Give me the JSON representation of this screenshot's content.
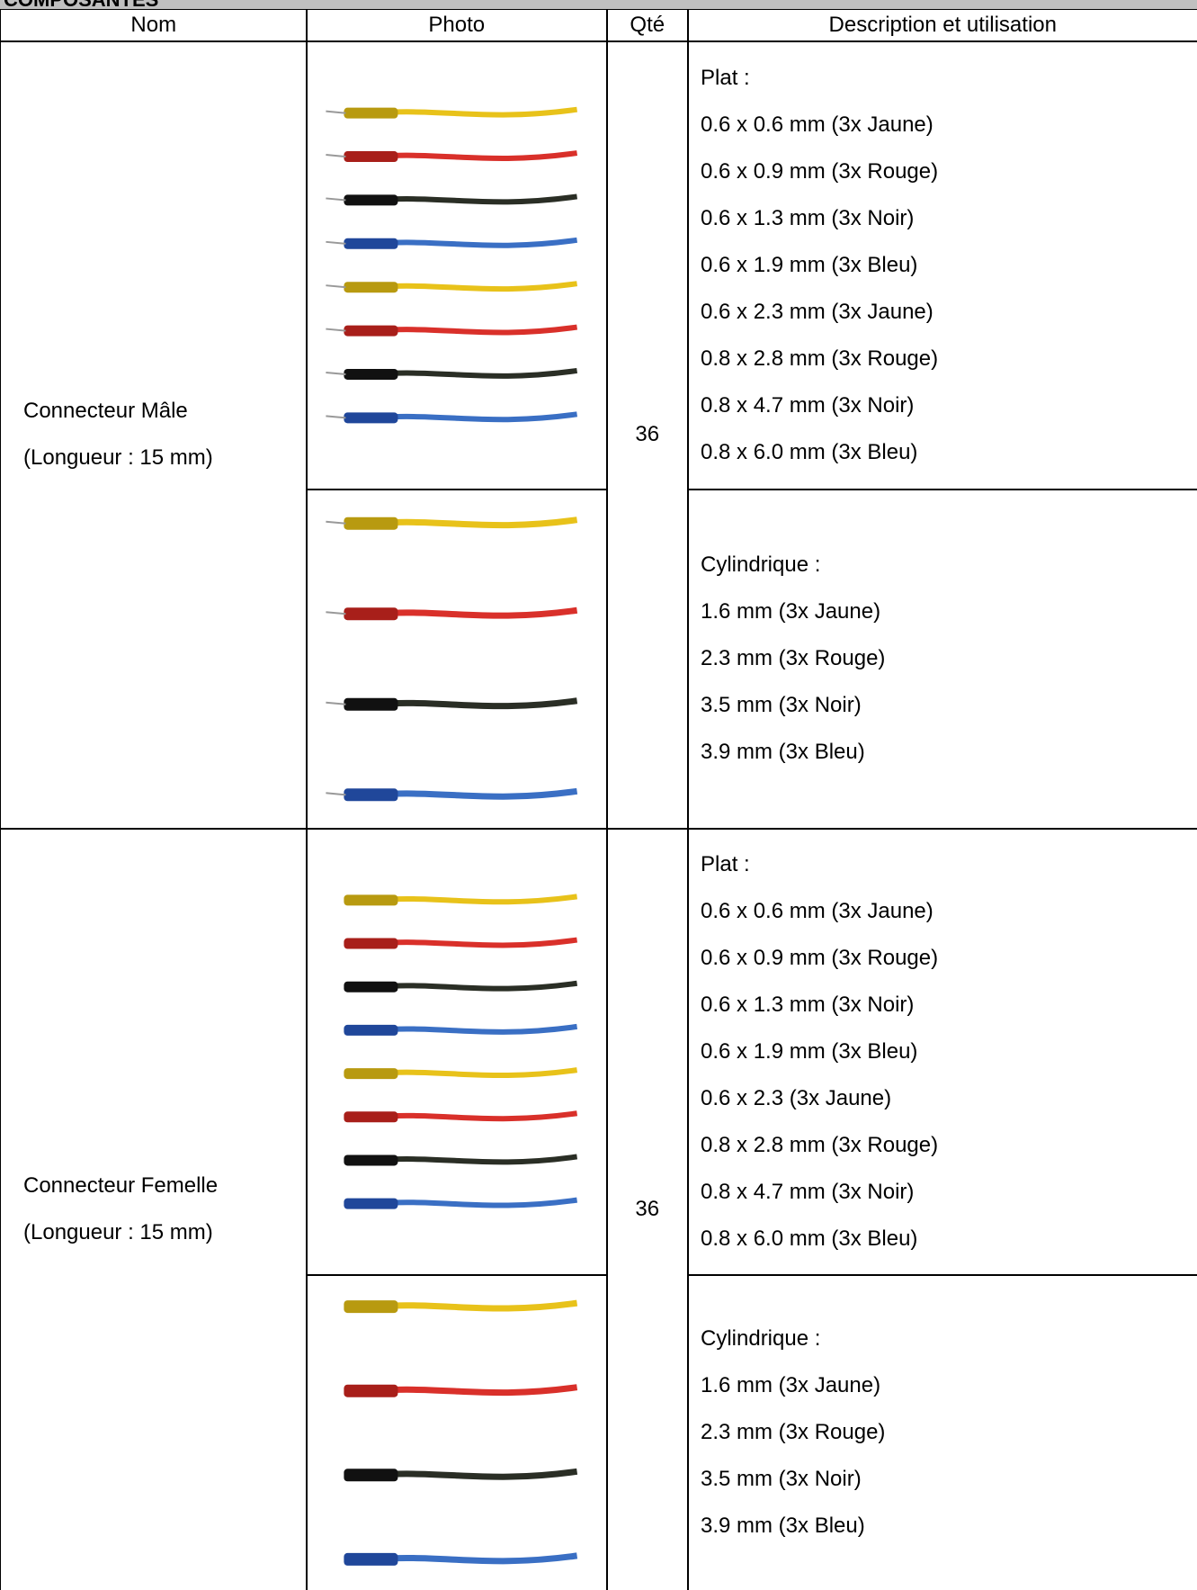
{
  "header": {
    "title": "COMPOSANTES"
  },
  "table": {
    "columns": [
      "Nom",
      "Photo",
      "Qté",
      "Description et utilisation"
    ],
    "rows": [
      {
        "name": [
          "Connecteur Mâle",
          "(Longueur : 15 mm)"
        ],
        "quantity": 36,
        "groups": [
          [
            "Plat :",
            "0.6 x 0.6 mm (3x Jaune)",
            "0.6 x 0.9 mm (3x Rouge)",
            "0.6 x 1.3 mm (3x Noir)",
            "0.6 x 1.9 mm (3x Bleu)",
            "0.6 x 2.3 mm (3x Jaune)",
            "0.8 x 2.8 mm (3x Rouge)",
            "0.8 x 4.7 mm (3x Noir)",
            "0.8 x 6.0 mm (3x Bleu)"
          ],
          [
            "Cylindrique :",
            "1.6 mm (3x Jaune)",
            "2.3 mm (3x Rouge)",
            "3.5 mm (3x Noir)",
            "3.9 mm (3x Bleu)"
          ]
        ]
      },
      {
        "name": [
          "Connecteur Femelle",
          "(Longueur : 15 mm)"
        ],
        "quantity": 36,
        "groups": [
          [
            "Plat :",
            "0.6 x 0.6 mm (3x Jaune)",
            "0.6 x 0.9 mm (3x Rouge)",
            "0.6 x 1.3 mm (3x Noir)",
            "0.6 x 1.9 mm (3x Bleu)",
            "0.6 x 2.3 (3x Jaune)",
            "0.8 x 2.8 mm (3x Rouge)",
            "0.8 x 4.7 mm (3x Noir)",
            "0.8 x 6.0 mm (3x Bleu)"
          ],
          [
            "Cylindrique :",
            "1.6 mm (3x Jaune)",
            "2.3 mm (3x Rouge)",
            "3.5 mm (3x Noir)",
            "3.9 mm (3x Bleu)"
          ]
        ]
      }
    ]
  }
}
